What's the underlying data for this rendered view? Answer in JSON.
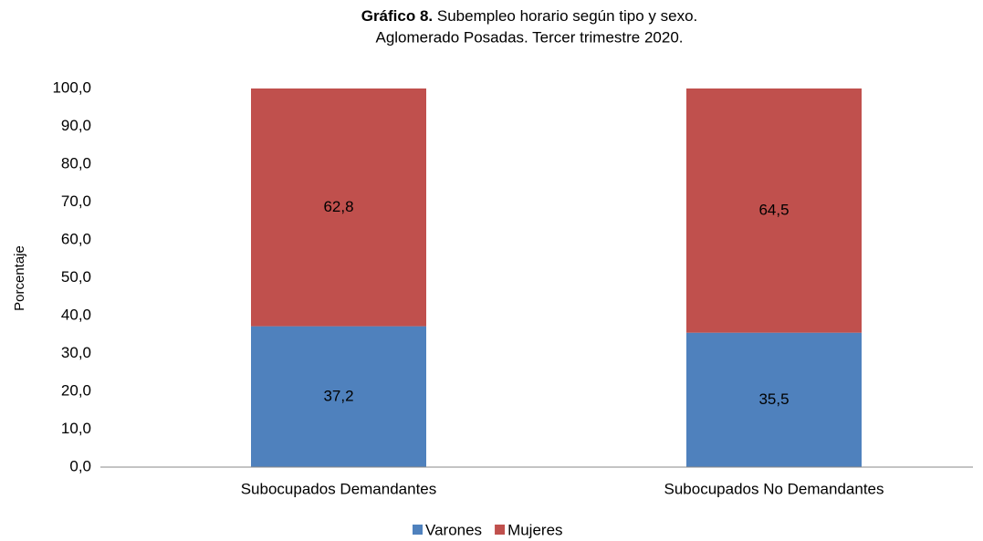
{
  "chart_data": {
    "type": "stacked_bar",
    "title_label": "Gráfico 8.",
    "title": "Subempleo horario según tipo y sexo.",
    "subtitle": "Aglomerado Posadas. Tercer trimestre 2020.",
    "y_label": "Porcentaje",
    "categories": [
      "Subocupados Demandantes",
      "Subocupados No Demandantes"
    ],
    "series": [
      {
        "name": "Varones",
        "color": "#4f81bd",
        "values": [
          37.2,
          35.5
        ],
        "value_labels": [
          "37,2",
          "35,5"
        ]
      },
      {
        "name": "Mujeres",
        "color": "#c0504d",
        "values": [
          62.8,
          64.5
        ],
        "value_labels": [
          "62,8",
          "64,5"
        ]
      }
    ],
    "ylim": [
      0,
      100
    ],
    "yticks": [
      {
        "value": 0,
        "label": "0,0"
      },
      {
        "value": 10,
        "label": "10,0"
      },
      {
        "value": 20,
        "label": "20,0"
      },
      {
        "value": 30,
        "label": "30,0"
      },
      {
        "value": 40,
        "label": "40,0"
      },
      {
        "value": 50,
        "label": "50,0"
      },
      {
        "value": 60,
        "label": "60,0"
      },
      {
        "value": 70,
        "label": "70,0"
      },
      {
        "value": 80,
        "label": "80,0"
      },
      {
        "value": 90,
        "label": "90,0"
      },
      {
        "value": 100,
        "label": "100,0"
      }
    ],
    "grid": false,
    "legend": "bottom"
  }
}
